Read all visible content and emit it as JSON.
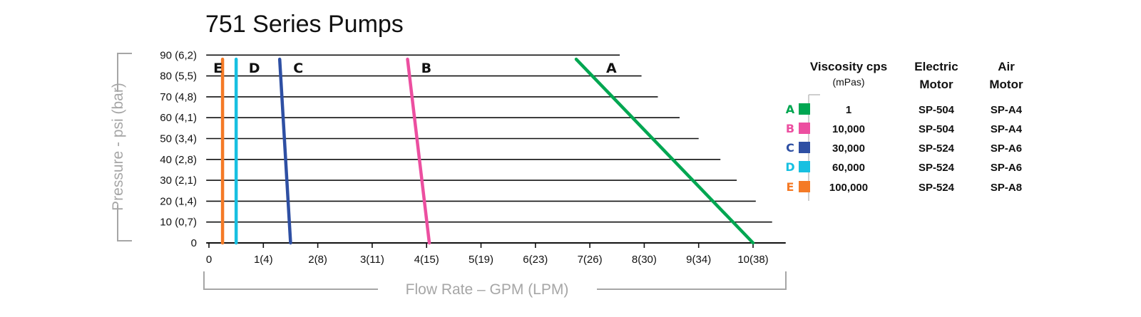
{
  "chart_data": {
    "type": "line",
    "title": "751 Series Pumps",
    "xlabel": "Flow Rate – GPM (LPM)",
    "ylabel": "Pressure - psi (bar)",
    "xlim": [
      0,
      10.6
    ],
    "ylim": [
      0,
      90
    ],
    "x_ticks": [
      {
        "value": 0,
        "label": "0"
      },
      {
        "value": 1,
        "label": "1(4)"
      },
      {
        "value": 2,
        "label": "2(8)"
      },
      {
        "value": 3,
        "label": "3(11)"
      },
      {
        "value": 4,
        "label": "4(15)"
      },
      {
        "value": 5,
        "label": "5(19)"
      },
      {
        "value": 6,
        "label": "6(23)"
      },
      {
        "value": 7,
        "label": "7(26)"
      },
      {
        "value": 8,
        "label": "8(30)"
      },
      {
        "value": 9,
        "label": "9(34)"
      },
      {
        "value": 10,
        "label": "10(38)"
      }
    ],
    "y_ticks": [
      {
        "value": 0,
        "label": "0"
      },
      {
        "value": 10,
        "label": "10  (0,7)"
      },
      {
        "value": 20,
        "label": "20  (1,4)"
      },
      {
        "value": 30,
        "label": "30  (2,1)"
      },
      {
        "value": 40,
        "label": "40  (2,8)"
      },
      {
        "value": 50,
        "label": "50  (3,4)"
      },
      {
        "value": 60,
        "label": "60  (4,1)"
      },
      {
        "value": 70,
        "label": "70  (4,8)"
      },
      {
        "value": 80,
        "label": "80  (5,5)"
      },
      {
        "value": 90,
        "label": "90  (6,2)"
      }
    ],
    "gridlines": [
      {
        "y": 10,
        "x_end": 10.35
      },
      {
        "y": 20,
        "x_end": 10.05
      },
      {
        "y": 30,
        "x_end": 9.7
      },
      {
        "y": 40,
        "x_end": 9.4
      },
      {
        "y": 50,
        "x_end": 9.0
      },
      {
        "y": 60,
        "x_end": 8.65
      },
      {
        "y": 70,
        "x_end": 8.25
      },
      {
        "y": 80,
        "x_end": 7.95
      },
      {
        "y": 90,
        "x_end": 7.55
      }
    ],
    "series": [
      {
        "name": "A",
        "color": "#00a651",
        "points": [
          [
            6.75,
            88
          ],
          [
            10.0,
            0
          ]
        ],
        "label_pos": [
          7.3,
          84
        ]
      },
      {
        "name": "B",
        "color": "#ec4fa0",
        "points": [
          [
            3.65,
            88
          ],
          [
            4.05,
            0
          ]
        ],
        "label_pos": [
          3.9,
          84
        ]
      },
      {
        "name": "C",
        "color": "#2e4fa3",
        "points": [
          [
            1.3,
            88
          ],
          [
            1.5,
            0
          ]
        ],
        "label_pos": [
          1.55,
          84
        ]
      },
      {
        "name": "D",
        "color": "#17c0e1",
        "points": [
          [
            0.5,
            88
          ],
          [
            0.5,
            0
          ]
        ],
        "label_pos": [
          0.73,
          84
        ]
      },
      {
        "name": "E",
        "color": "#f47a26",
        "points": [
          [
            0.25,
            88
          ],
          [
            0.25,
            0
          ]
        ],
        "label_pos": [
          0.08,
          84
        ]
      }
    ],
    "legend": {
      "placement": "right",
      "headers": {
        "viscosity": "Viscosity cps",
        "viscosity_unit": "(mPas)",
        "electric_line1": "Electric",
        "electric_line2": "Motor",
        "air_line1": "Air",
        "air_line2": "Motor"
      },
      "rows": [
        {
          "key": "A",
          "color": "#00a651",
          "viscosity": "1",
          "electric": "SP-504",
          "air": "SP-A4"
        },
        {
          "key": "B",
          "color": "#ec4fa0",
          "viscosity": "10,000",
          "electric": "SP-504",
          "air": "SP-A4"
        },
        {
          "key": "C",
          "color": "#2e4fa3",
          "viscosity": "30,000",
          "electric": "SP-524",
          "air": "SP-A6"
        },
        {
          "key": "D",
          "color": "#17c0e1",
          "viscosity": "60,000",
          "electric": "SP-524",
          "air": "SP-A6"
        },
        {
          "key": "E",
          "color": "#f47a26",
          "viscosity": "100,000",
          "electric": "SP-524",
          "air": "SP-A8"
        }
      ]
    }
  }
}
